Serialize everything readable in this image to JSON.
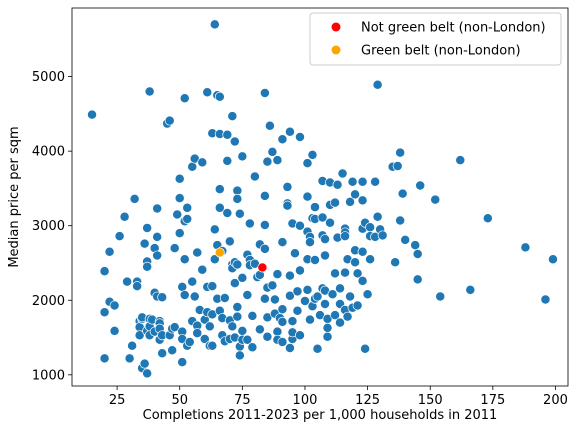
{
  "chart_data": {
    "type": "scatter",
    "title": "",
    "xlabel": "Completions 2011-2023 per 1,000 households in 2011",
    "ylabel": "Median price per sqm",
    "xlim": [
      7,
      205
    ],
    "ylim": [
      850,
      5920
    ],
    "x_ticks": [
      25,
      50,
      75,
      100,
      125,
      150,
      175,
      200
    ],
    "y_ticks": [
      1000,
      2000,
      3000,
      4000,
      5000
    ],
    "grid": false,
    "legend_position": "top-right",
    "colors": {
      "all_points": "#1f77b4",
      "not_green_belt": "#ff0000",
      "green_belt": "#ffa500"
    },
    "legend": [
      {
        "label": "Not green belt (non-London)",
        "color": "#ff0000"
      },
      {
        "label": "Green belt (non-London)",
        "color": "#ffa500"
      }
    ],
    "series": [
      {
        "name": "",
        "color": "#1f77b4",
        "points": [
          [
            15,
            4490
          ],
          [
            20,
            2390
          ],
          [
            20,
            1840
          ],
          [
            20,
            1220
          ],
          [
            22,
            2650
          ],
          [
            22,
            1980
          ],
          [
            24,
            1930
          ],
          [
            24,
            1590
          ],
          [
            26,
            2860
          ],
          [
            28,
            3120
          ],
          [
            29,
            2250
          ],
          [
            30,
            1220
          ],
          [
            31,
            1390
          ],
          [
            32,
            3360
          ],
          [
            33,
            2250
          ],
          [
            33,
            2190
          ],
          [
            34,
            1720
          ],
          [
            34,
            1640
          ],
          [
            34,
            1530
          ],
          [
            35,
            1090
          ],
          [
            35,
            1750
          ],
          [
            35,
            1770
          ],
          [
            36,
            1150
          ],
          [
            36,
            2760
          ],
          [
            37,
            2970
          ],
          [
            37,
            2520
          ],
          [
            37,
            2450
          ],
          [
            37,
            1590
          ],
          [
            37,
            1020
          ],
          [
            38,
            1750
          ],
          [
            38,
            1650
          ],
          [
            38,
            1530
          ],
          [
            38,
            4800
          ],
          [
            39,
            1740
          ],
          [
            40,
            2700
          ],
          [
            40,
            2100
          ],
          [
            40,
            1580
          ],
          [
            41,
            3230
          ],
          [
            41,
            2850
          ],
          [
            41,
            2600
          ],
          [
            41,
            2050
          ],
          [
            42,
            1720
          ],
          [
            42,
            1690
          ],
          [
            42,
            1620
          ],
          [
            42,
            1470
          ],
          [
            43,
            1530
          ],
          [
            43,
            1290
          ],
          [
            43,
            2040
          ],
          [
            45,
            4370
          ],
          [
            46,
            4410
          ],
          [
            46,
            1530
          ],
          [
            47,
            1330
          ],
          [
            47,
            1620
          ],
          [
            48,
            2700
          ],
          [
            48,
            1640
          ],
          [
            49,
            3150
          ],
          [
            50,
            3630
          ],
          [
            50,
            3370
          ],
          [
            50,
            2900
          ],
          [
            51,
            2180
          ],
          [
            51,
            1580
          ],
          [
            51,
            1480
          ],
          [
            51,
            1170
          ],
          [
            52,
            4710
          ],
          [
            52,
            3060
          ],
          [
            52,
            2550
          ],
          [
            52,
            2070
          ],
          [
            53,
            3240
          ],
          [
            53,
            1390
          ],
          [
            53,
            3090
          ],
          [
            54,
            1440
          ],
          [
            55,
            3790
          ],
          [
            55,
            2250
          ],
          [
            55,
            1720
          ],
          [
            56,
            3900
          ],
          [
            56,
            2050
          ],
          [
            57,
            2640
          ],
          [
            57,
            1660
          ],
          [
            57,
            1560
          ],
          [
            58,
            1870
          ],
          [
            59,
            3850
          ],
          [
            59,
            2410
          ],
          [
            60,
            1480
          ],
          [
            60,
            1740
          ],
          [
            61,
            4790
          ],
          [
            61,
            2180
          ],
          [
            61,
            1840
          ],
          [
            62,
            1650
          ],
          [
            62,
            1390
          ],
          [
            63,
            2190
          ],
          [
            63,
            1810
          ],
          [
            63,
            1390
          ],
          [
            63,
            4240
          ],
          [
            64,
            5700
          ],
          [
            64,
            2950
          ],
          [
            64,
            2550
          ],
          [
            65,
            4750
          ],
          [
            65,
            2740
          ],
          [
            65,
            2020
          ],
          [
            66,
            4730
          ],
          [
            66,
            4230
          ],
          [
            66,
            3490
          ],
          [
            66,
            3240
          ],
          [
            66,
            1860
          ],
          [
            67,
            2660
          ],
          [
            67,
            1760
          ],
          [
            67,
            1530
          ],
          [
            68,
            2030
          ],
          [
            68,
            1450
          ],
          [
            69,
            3170
          ],
          [
            69,
            3870
          ],
          [
            69,
            4220
          ],
          [
            70,
            2790
          ],
          [
            70,
            1730
          ],
          [
            70,
            1480
          ],
          [
            71,
            4470
          ],
          [
            71,
            2480
          ],
          [
            71,
            2430
          ],
          [
            71,
            1650
          ],
          [
            72,
            4130
          ],
          [
            72,
            2510
          ],
          [
            72,
            2230
          ],
          [
            72,
            1500
          ],
          [
            73,
            3470
          ],
          [
            73,
            3360
          ],
          [
            73,
            2480
          ],
          [
            73,
            1910
          ],
          [
            73,
            1780
          ],
          [
            74,
            3160
          ],
          [
            74,
            1380
          ],
          [
            74,
            1260
          ],
          [
            75,
            3930
          ],
          [
            75,
            2300
          ],
          [
            75,
            1590
          ],
          [
            75,
            1470
          ],
          [
            77,
            2610
          ],
          [
            77,
            2070
          ],
          [
            77,
            1470
          ],
          [
            78,
            3030
          ],
          [
            78,
            2540
          ],
          [
            78,
            2470
          ],
          [
            79,
            1790
          ],
          [
            79,
            1370
          ],
          [
            80,
            3660
          ],
          [
            80,
            2490
          ],
          [
            81,
            2310
          ],
          [
            82,
            2340
          ],
          [
            82,
            1610
          ],
          [
            82,
            2750
          ],
          [
            84,
            4780
          ],
          [
            84,
            3400
          ],
          [
            84,
            3010
          ],
          [
            84,
            2690
          ],
          [
            84,
            2020
          ],
          [
            85,
            3860
          ],
          [
            85,
            2170
          ],
          [
            85,
            1770
          ],
          [
            85,
            1510
          ],
          [
            86,
            4340
          ],
          [
            87,
            3990
          ],
          [
            87,
            2200
          ],
          [
            88,
            2010
          ],
          [
            88,
            1820
          ],
          [
            89,
            3880
          ],
          [
            89,
            2350
          ],
          [
            89,
            1580
          ],
          [
            89,
            1470
          ],
          [
            90,
            1760
          ],
          [
            91,
            4160
          ],
          [
            91,
            2780
          ],
          [
            91,
            1880
          ],
          [
            91,
            1710
          ],
          [
            91,
            1440
          ],
          [
            93,
            3520
          ],
          [
            93,
            3300
          ],
          [
            93,
            3270
          ],
          [
            94,
            4260
          ],
          [
            94,
            2330
          ],
          [
            94,
            2060
          ],
          [
            94,
            1360
          ],
          [
            95,
            3030
          ],
          [
            95,
            1480
          ],
          [
            95,
            1720
          ],
          [
            95,
            1570
          ],
          [
            96,
            2630
          ],
          [
            97,
            1860
          ],
          [
            97,
            2120
          ],
          [
            98,
            4190
          ],
          [
            98,
            3000
          ],
          [
            98,
            2400
          ],
          [
            98,
            1530
          ],
          [
            100,
            1990
          ],
          [
            101,
            3840
          ],
          [
            101,
            3390
          ],
          [
            101,
            2920
          ],
          [
            101,
            2550
          ],
          [
            101,
            2140
          ],
          [
            102,
            2850
          ],
          [
            102,
            2780
          ],
          [
            102,
            1740
          ],
          [
            103,
            3950
          ],
          [
            103,
            3100
          ],
          [
            103,
            1920
          ],
          [
            104,
            3250
          ],
          [
            104,
            3090
          ],
          [
            104,
            2540
          ],
          [
            104,
            2020
          ],
          [
            105,
            2050
          ],
          [
            105,
            1350
          ],
          [
            106,
            1800
          ],
          [
            107,
            3600
          ],
          [
            107,
            3110
          ],
          [
            107,
            2870
          ],
          [
            107,
            2160
          ],
          [
            108,
            1950
          ],
          [
            108,
            2820
          ],
          [
            108,
            2600
          ],
          [
            108,
            2130
          ],
          [
            109,
            1750
          ],
          [
            109,
            1630
          ],
          [
            109,
            1510
          ],
          [
            110,
            3580
          ],
          [
            110,
            3280
          ],
          [
            110,
            3040
          ],
          [
            111,
            2080
          ],
          [
            112,
            3310
          ],
          [
            112,
            2360
          ],
          [
            112,
            1800
          ],
          [
            113,
            3550
          ],
          [
            113,
            2840
          ],
          [
            114,
            2160
          ],
          [
            114,
            1950
          ],
          [
            114,
            1700
          ],
          [
            115,
            3700
          ],
          [
            116,
            2960
          ],
          [
            116,
            2910
          ],
          [
            116,
            2860
          ],
          [
            116,
            2370
          ],
          [
            116,
            1870
          ],
          [
            117,
            1780
          ],
          [
            117,
            2550
          ],
          [
            118,
            3320
          ],
          [
            118,
            2050
          ],
          [
            119,
            3590
          ],
          [
            119,
            1900
          ],
          [
            120,
            3420
          ],
          [
            120,
            2670
          ],
          [
            120,
            2510
          ],
          [
            121,
            2360
          ],
          [
            121,
            1930
          ],
          [
            123,
            3590
          ],
          [
            123,
            3340
          ],
          [
            123,
            2960
          ],
          [
            123,
            2650
          ],
          [
            123,
            2260
          ],
          [
            124,
            3040
          ],
          [
            124,
            1350
          ],
          [
            125,
            2080
          ],
          [
            126,
            2980
          ],
          [
            126,
            2860
          ],
          [
            126,
            2550
          ],
          [
            128,
            3590
          ],
          [
            128,
            2850
          ],
          [
            129,
            4890
          ],
          [
            129,
            3120
          ],
          [
            130,
            2950
          ],
          [
            131,
            2870
          ],
          [
            135,
            3790
          ],
          [
            136,
            2510
          ],
          [
            137,
            3800
          ],
          [
            138,
            3070
          ],
          [
            138,
            3980
          ],
          [
            139,
            3430
          ],
          [
            140,
            2810
          ],
          [
            144,
            2740
          ],
          [
            145,
            2620
          ],
          [
            145,
            2280
          ],
          [
            146,
            3540
          ],
          [
            152,
            3350
          ],
          [
            154,
            2050
          ],
          [
            162,
            3880
          ],
          [
            166,
            2140
          ],
          [
            173,
            3100
          ],
          [
            188,
            2710
          ],
          [
            196,
            2010
          ],
          [
            199,
            2550
          ]
        ]
      },
      {
        "name": "Not green belt (non-London)",
        "color": "#ff0000",
        "points": [
          [
            83,
            2440
          ]
        ]
      },
      {
        "name": "Green belt (non-London)",
        "color": "#ffa500",
        "points": [
          [
            66,
            2640
          ]
        ]
      }
    ]
  }
}
